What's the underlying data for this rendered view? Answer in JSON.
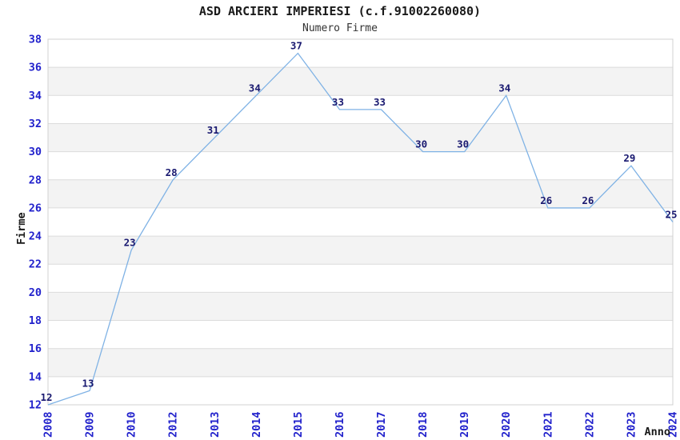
{
  "chart_data": {
    "type": "line",
    "title": "ASD ARCIERI IMPERIESI (c.f.91002260080)",
    "subtitle": "Numero Firme",
    "xlabel": "Anno",
    "ylabel": "Firme",
    "categories": [
      "2008",
      "2009",
      "2010",
      "2012",
      "2013",
      "2014",
      "2015",
      "2016",
      "2017",
      "2018",
      "2019",
      "2020",
      "2021",
      "2022",
      "2023",
      "2024"
    ],
    "series": [
      {
        "name": "Numero Firme",
        "values": [
          12,
          13,
          23,
          28,
          31,
          34,
          37,
          33,
          33,
          30,
          30,
          34,
          26,
          26,
          29,
          25
        ]
      }
    ],
    "ylim": [
      12,
      38
    ],
    "ytick_step": 2,
    "grid": true,
    "plot_bands_alternating": true,
    "legend_position": "none",
    "data_labels_visible": true,
    "colors": {
      "line": "#7fb2e5",
      "data_label": "#191970",
      "tick_label": "#2222cc",
      "axis_title": "#1a1a1a",
      "title": "#1a1a1a",
      "subtitle": "#333333",
      "band": "#f3f3f3",
      "gridline": "#dcdcdc",
      "plot_border": "#d0d0d0",
      "background": "#ffffff"
    }
  }
}
